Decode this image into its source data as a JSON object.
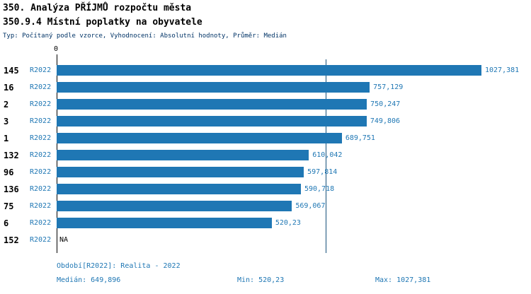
{
  "header": {
    "title_line1": "350. Analýza PŘÍJMŮ rozpočtu města",
    "title_line2": "350.9.4 Místní poplatky na obyvatele",
    "subtitle": "Typ: Počítaný podle vzorce, Vyhodnocení: Absolutní hodnoty, Průměr: Medián"
  },
  "chart_data": {
    "type": "bar",
    "orientation": "horizontal",
    "zero_tick_label": "0",
    "max_value": 1027.381,
    "median_value": 649.896,
    "xlim": [
      0,
      1027.381
    ],
    "grid": false,
    "rows": [
      {
        "id": "145",
        "period": "R2022",
        "value": 1027.381,
        "value_label": "1027,381"
      },
      {
        "id": "16",
        "period": "R2022",
        "value": 757.129,
        "value_label": "757,129"
      },
      {
        "id": "2",
        "period": "R2022",
        "value": 750.247,
        "value_label": "750,247"
      },
      {
        "id": "3",
        "period": "R2022",
        "value": 749.806,
        "value_label": "749,806"
      },
      {
        "id": "1",
        "period": "R2022",
        "value": 689.751,
        "value_label": "689,751"
      },
      {
        "id": "132",
        "period": "R2022",
        "value": 610.042,
        "value_label": "610,042"
      },
      {
        "id": "96",
        "period": "R2022",
        "value": 597.814,
        "value_label": "597,814"
      },
      {
        "id": "136",
        "period": "R2022",
        "value": 590.718,
        "value_label": "590,718"
      },
      {
        "id": "75",
        "period": "R2022",
        "value": 569.067,
        "value_label": "569,067"
      },
      {
        "id": "6",
        "period": "R2022",
        "value": 520.23,
        "value_label": "520,23"
      },
      {
        "id": "152",
        "period": "R2022",
        "value": null,
        "value_label": "NA"
      }
    ],
    "colors": {
      "bar": "#1f77b4",
      "value_text": "#1f77b4",
      "period_text": "#1f77b4",
      "median_line": "#17517a",
      "axis": "#000000",
      "subtitle_text": "#003366"
    }
  },
  "footer": {
    "period": "Období[R2022]: Realita - 2022",
    "median": "Medián: 649,896",
    "min": "Min: 520,23",
    "max": "Max: 1027,381"
  }
}
